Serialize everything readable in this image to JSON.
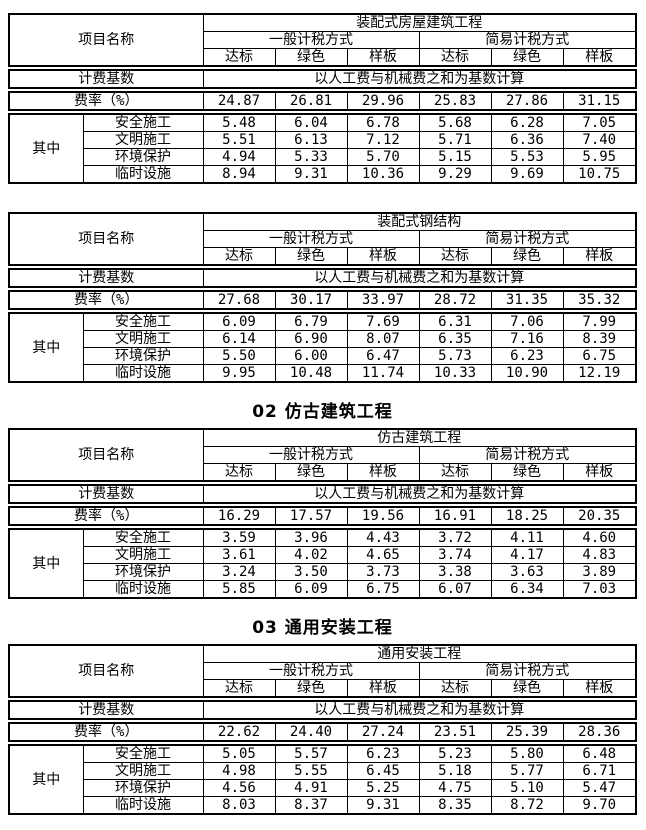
{
  "document": {
    "background": "#ffffff",
    "border_color": "#000000",
    "text_color": "#000000"
  },
  "labels": {
    "project_name": "项目名称",
    "general_method": "一般计税方式",
    "simple_method": "简易计税方式",
    "grades": [
      "达标",
      "绿色",
      "样板"
    ],
    "fee_base": "计费基数",
    "fee_base_value": "以人工费与机械费之和为基数计算",
    "rate": "费率（%）",
    "among": "其中"
  },
  "sections": [
    {
      "heading": "",
      "title": "装配式房屋建筑工程",
      "rates": [
        "24.87",
        "26.81",
        "29.96",
        "25.83",
        "27.86",
        "31.15"
      ],
      "rows": [
        {
          "label": "安全施工",
          "values": [
            "5.48",
            "6.04",
            "6.78",
            "5.68",
            "6.28",
            "7.05"
          ]
        },
        {
          "label": "文明施工",
          "values": [
            "5.51",
            "6.13",
            "7.12",
            "5.71",
            "6.36",
            "7.40"
          ]
        },
        {
          "label": "环境保护",
          "values": [
            "4.94",
            "5.33",
            "5.70",
            "5.15",
            "5.53",
            "5.95"
          ]
        },
        {
          "label": "临时设施",
          "values": [
            "8.94",
            "9.31",
            "10.36",
            "9.29",
            "9.69",
            "10.75"
          ]
        }
      ]
    },
    {
      "heading": "",
      "title": "装配式钢结构",
      "rates": [
        "27.68",
        "30.17",
        "33.97",
        "28.72",
        "31.35",
        "35.32"
      ],
      "rows": [
        {
          "label": "安全施工",
          "values": [
            "6.09",
            "6.79",
            "7.69",
            "6.31",
            "7.06",
            "7.99"
          ]
        },
        {
          "label": "文明施工",
          "values": [
            "6.14",
            "6.90",
            "8.07",
            "6.35",
            "7.16",
            "8.39"
          ]
        },
        {
          "label": "环境保护",
          "values": [
            "5.50",
            "6.00",
            "6.47",
            "5.73",
            "6.23",
            "6.75"
          ]
        },
        {
          "label": "临时设施",
          "values": [
            "9.95",
            "10.48",
            "11.74",
            "10.33",
            "10.90",
            "12.19"
          ]
        }
      ]
    },
    {
      "heading": "02 仿古建筑工程",
      "title": "仿古建筑工程",
      "rates": [
        "16.29",
        "17.57",
        "19.56",
        "16.91",
        "18.25",
        "20.35"
      ],
      "rows": [
        {
          "label": "安全施工",
          "values": [
            "3.59",
            "3.96",
            "4.43",
            "3.72",
            "4.11",
            "4.60"
          ]
        },
        {
          "label": "文明施工",
          "values": [
            "3.61",
            "4.02",
            "4.65",
            "3.74",
            "4.17",
            "4.83"
          ]
        },
        {
          "label": "环境保护",
          "values": [
            "3.24",
            "3.50",
            "3.73",
            "3.38",
            "3.63",
            "3.89"
          ]
        },
        {
          "label": "临时设施",
          "values": [
            "5.85",
            "6.09",
            "6.75",
            "6.07",
            "6.34",
            "7.03"
          ]
        }
      ]
    },
    {
      "heading": "03 通用安装工程",
      "title": "通用安装工程",
      "rates": [
        "22.62",
        "24.40",
        "27.24",
        "23.51",
        "25.39",
        "28.36"
      ],
      "rows": [
        {
          "label": "安全施工",
          "values": [
            "5.05",
            "5.57",
            "6.23",
            "5.23",
            "5.80",
            "6.48"
          ]
        },
        {
          "label": "文明施工",
          "values": [
            "4.98",
            "5.55",
            "6.45",
            "5.18",
            "5.77",
            "6.71"
          ]
        },
        {
          "label": "环境保护",
          "values": [
            "4.56",
            "4.91",
            "5.25",
            "4.75",
            "5.10",
            "5.47"
          ]
        },
        {
          "label": "临时设施",
          "values": [
            "8.03",
            "8.37",
            "9.31",
            "8.35",
            "8.72",
            "9.70"
          ]
        }
      ]
    }
  ]
}
